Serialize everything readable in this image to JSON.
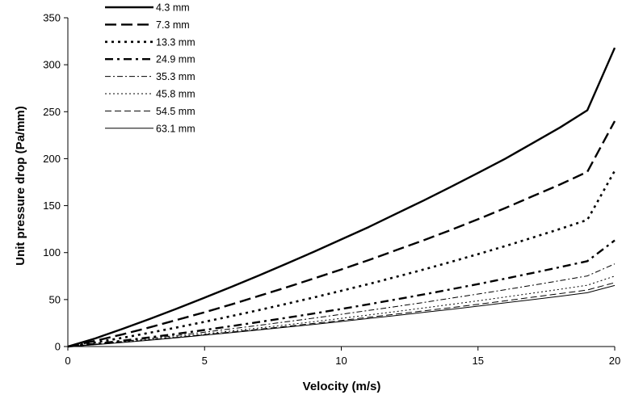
{
  "chart_data": {
    "type": "line",
    "title": "",
    "xlabel": "Velocity (m/s)",
    "ylabel": "Unit pressure drop (Pa/mm)",
    "xlim": [
      0,
      20
    ],
    "ylim": [
      0,
      350
    ],
    "xticks": [
      0,
      5,
      10,
      15,
      20
    ],
    "yticks": [
      0,
      50,
      100,
      150,
      200,
      250,
      300,
      350
    ],
    "grid": false,
    "legend_position": "top-left",
    "x": [
      0,
      1,
      2,
      3,
      4,
      5,
      6,
      7,
      8,
      9,
      10,
      11,
      12,
      13,
      14,
      15,
      16,
      17,
      18,
      19,
      20
    ],
    "series": [
      {
        "name": "4.3 mm",
        "style": "solid-bold",
        "values": [
          0,
          8.6,
          18.8,
          29.5,
          40.5,
          52,
          63.7,
          75.8,
          88.2,
          101,
          114,
          127.2,
          141.3,
          155.3,
          169.9,
          184.8,
          200,
          216.5,
          233.2,
          251.5,
          318
        ]
      },
      {
        "name": "7.3 mm",
        "style": "long-dash-bold",
        "values": [
          0,
          6,
          13,
          20.5,
          28.5,
          36.5,
          45,
          54,
          63,
          72.5,
          82,
          92,
          102.5,
          113,
          124,
          135.5,
          147.5,
          160,
          172.5,
          186,
          240
        ]
      },
      {
        "name": "13.3 mm",
        "style": "dot-bold",
        "values": [
          0,
          4.3,
          9.3,
          14.7,
          20.4,
          26.3,
          32.5,
          38.9,
          45.5,
          52.3,
          59.3,
          66.6,
          74.1,
          81.9,
          90,
          98.4,
          107,
          116,
          125.2,
          134.8,
          187
        ]
      },
      {
        "name": "24.9 mm",
        "style": "dash-dot-bold",
        "values": [
          0,
          2.9,
          6.2,
          9.8,
          13.6,
          17.6,
          21.8,
          26.1,
          30.6,
          35.2,
          40,
          45,
          50.1,
          55.4,
          60.9,
          66.5,
          72.3,
          78.3,
          84.5,
          90.9,
          113
        ]
      },
      {
        "name": "35.3 mm",
        "style": "dash-dot-thin",
        "values": [
          0,
          2.5,
          5.5,
          8.6,
          11.9,
          15.3,
          18.9,
          22.6,
          26.4,
          30.3,
          34.3,
          38.4,
          42.6,
          46.9,
          51.4,
          55.9,
          60.5,
          65.3,
          70.2,
          75.2,
          88
        ]
      },
      {
        "name": "45.8 mm",
        "style": "dot-thin",
        "values": [
          0,
          2.2,
          4.8,
          7.6,
          10.5,
          13.5,
          16.6,
          19.8,
          23.1,
          26.5,
          30,
          33.6,
          37.2,
          41,
          44.8,
          48.7,
          52.7,
          56.8,
          61,
          65.3,
          75
        ]
      },
      {
        "name": "54.5 mm",
        "style": "dash-thin",
        "values": [
          0,
          2.1,
          4.5,
          7.1,
          9.8,
          12.6,
          15.5,
          18.4,
          21.5,
          24.6,
          27.8,
          31.1,
          34.5,
          37.9,
          41.4,
          45,
          48.7,
          52.5,
          56.3,
          60.2,
          68
        ]
      },
      {
        "name": "63.1 mm",
        "style": "solid-thin",
        "values": [
          0,
          2.0,
          4.3,
          6.8,
          9.4,
          12.1,
          14.9,
          17.7,
          20.6,
          23.6,
          26.7,
          29.8,
          33,
          36.3,
          39.6,
          43,
          46.5,
          50,
          53.6,
          57.3,
          65
        ]
      }
    ]
  }
}
